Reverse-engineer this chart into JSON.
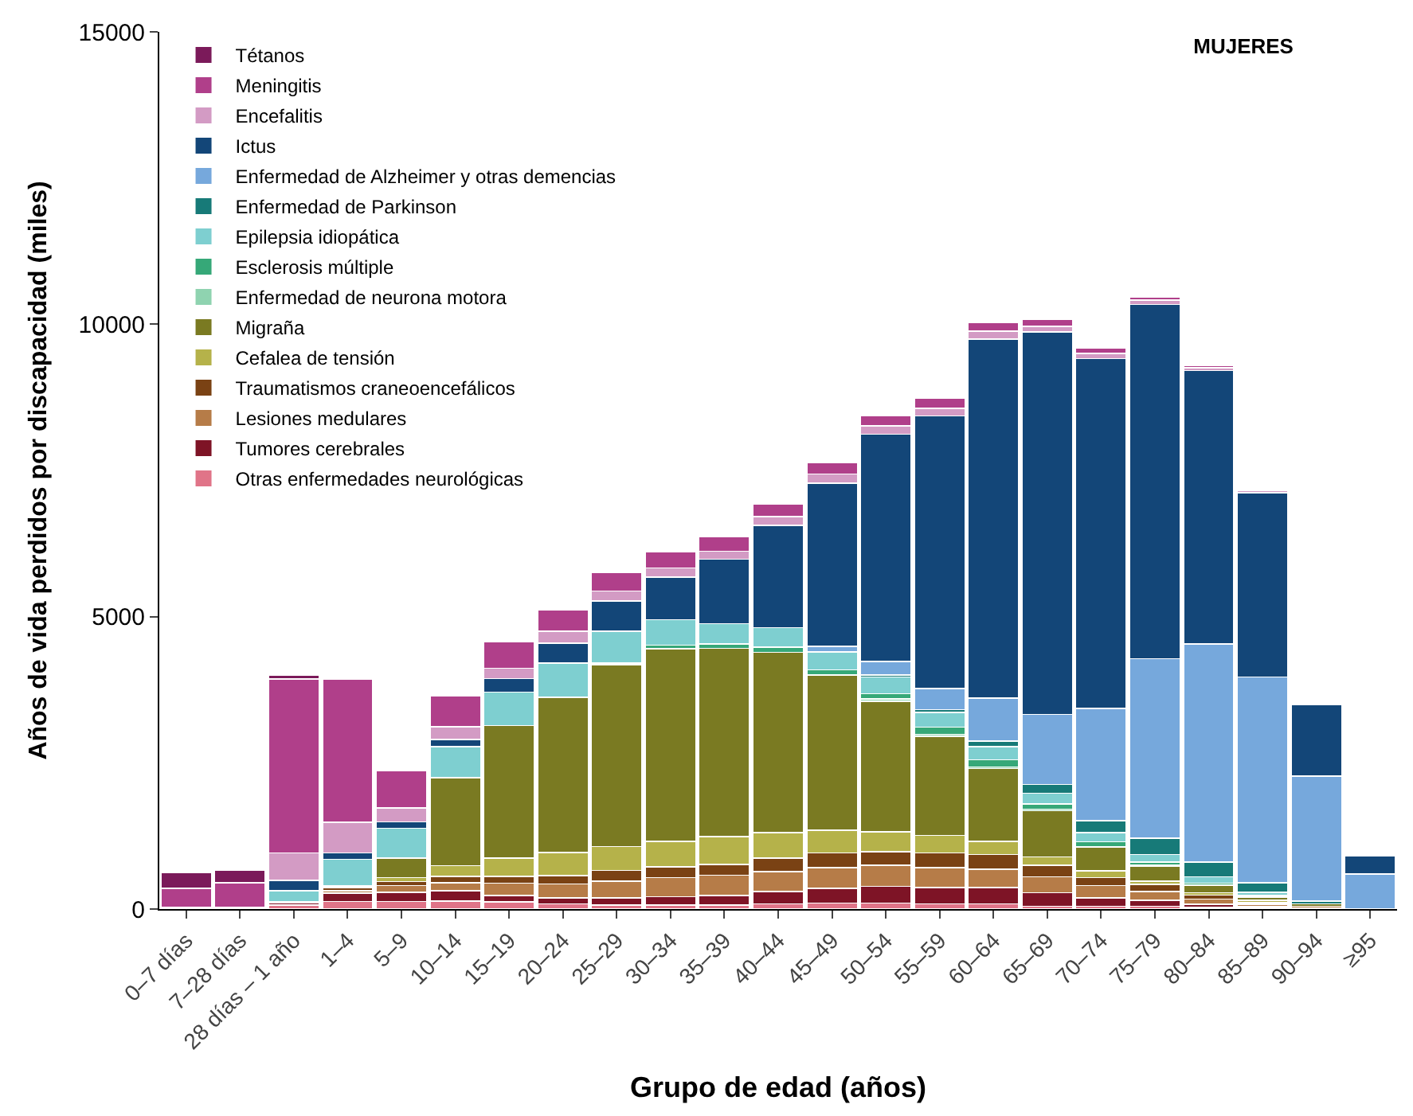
{
  "chart_data": {
    "type": "bar",
    "stacked": true,
    "title": "MUJERES",
    "xlabel": "Grupo de edad (años)",
    "ylabel": "Años de vida perdidos por discapacidad (miles)",
    "categories": [
      "0–7 días",
      "7–28 días",
      "28 días – 1 año",
      "1–4",
      "5–9",
      "10–14",
      "15–19",
      "20–24",
      "25–29",
      "30–34",
      "35–39",
      "40–44",
      "45–49",
      "50–54",
      "55–59",
      "60–64",
      "65–69",
      "70–74",
      "75–79",
      "80–84",
      "85–89",
      "90–94",
      "≥95"
    ],
    "ylim": [
      0,
      15000
    ],
    "yticks": [
      0,
      5000,
      10000,
      15000
    ],
    "legend": "top left",
    "series": [
      {
        "name": "Otras enfermedades neurológicas",
        "color": "#e07488",
        "values": [
          30,
          30,
          70,
          130,
          130,
          140,
          120,
          90,
          70,
          70,
          70,
          90,
          100,
          100,
          90,
          90,
          50,
          50,
          50,
          30,
          20,
          20,
          0
        ]
      },
      {
        "name": "Tumores cerebrales",
        "color": "#7e1426",
        "values": [
          0,
          0,
          30,
          140,
          160,
          170,
          110,
          100,
          120,
          140,
          160,
          210,
          250,
          290,
          280,
          280,
          230,
          140,
          100,
          50,
          20,
          0,
          0
        ]
      },
      {
        "name": "Lesiones medulares",
        "color": "#b67c48",
        "values": [
          0,
          0,
          20,
          40,
          110,
          140,
          210,
          240,
          290,
          330,
          350,
          340,
          360,
          360,
          340,
          310,
          270,
          210,
          150,
          90,
          40,
          30,
          0
        ]
      },
      {
        "name": "Traumatismos craneoencefálicos",
        "color": "#7a4214",
        "values": [
          0,
          0,
          10,
          50,
          70,
          110,
          120,
          140,
          180,
          180,
          180,
          230,
          250,
          230,
          250,
          250,
          200,
          140,
          120,
          70,
          30,
          0,
          0
        ]
      },
      {
        "name": "Cefalea de tensión",
        "color": "#b5b24a",
        "values": [
          0,
          0,
          0,
          20,
          70,
          180,
          310,
          400,
          410,
          440,
          480,
          440,
          390,
          340,
          300,
          230,
          140,
          110,
          60,
          40,
          40,
          0,
          0
        ]
      },
      {
        "name": "Migraña",
        "color": "#7a7a22",
        "values": [
          0,
          0,
          0,
          20,
          330,
          1510,
          2270,
          2650,
          3110,
          3290,
          3220,
          3080,
          2650,
          2230,
          1690,
          1240,
          790,
          410,
          250,
          120,
          50,
          40,
          0
        ]
      },
      {
        "name": "Enfermedad de neurona motora",
        "color": "#8fd3b0",
        "values": [
          0,
          0,
          0,
          0,
          0,
          0,
          0,
          0,
          0,
          0,
          0,
          0,
          0,
          40,
          40,
          30,
          30,
          0,
          20,
          10,
          10,
          0,
          0
        ]
      },
      {
        "name": "Esclerosis múltiple",
        "color": "#36a878",
        "values": [
          0,
          0,
          0,
          0,
          0,
          0,
          0,
          0,
          30,
          60,
          70,
          90,
          90,
          90,
          120,
          120,
          90,
          90,
          50,
          30,
          20,
          0,
          0
        ]
      },
      {
        "name": "Epilepsia idiopática",
        "color": "#7ecfd0",
        "values": [
          0,
          0,
          180,
          450,
          510,
          530,
          570,
          590,
          540,
          440,
          350,
          330,
          310,
          290,
          250,
          230,
          180,
          160,
          130,
          110,
          60,
          0,
          0
        ]
      },
      {
        "name": "Enfermedad de Parkinson",
        "color": "#177a78",
        "values": [
          0,
          0,
          0,
          0,
          0,
          0,
          0,
          0,
          0,
          0,
          0,
          0,
          0,
          30,
          50,
          90,
          150,
          200,
          280,
          250,
          160,
          50,
          0
        ]
      },
      {
        "name": "Enfermedad de Alzheimer y otras demencias",
        "color": "#76a8dc",
        "values": [
          0,
          0,
          0,
          0,
          0,
          0,
          0,
          0,
          0,
          0,
          0,
          0,
          90,
          230,
          360,
          740,
          1200,
          1920,
          3070,
          3730,
          3520,
          2130,
          600
        ]
      },
      {
        "name": "Ictus",
        "color": "#134678",
        "values": [
          0,
          0,
          180,
          110,
          110,
          120,
          230,
          340,
          520,
          730,
          1100,
          1750,
          2790,
          3890,
          4660,
          6140,
          6540,
          5980,
          6060,
          4680,
          3150,
          1220,
          310
        ]
      },
      {
        "name": "Encefalitis",
        "color": "#d39bc4",
        "values": [
          0,
          0,
          470,
          520,
          240,
          220,
          180,
          200,
          170,
          150,
          140,
          150,
          160,
          140,
          130,
          130,
          90,
          90,
          70,
          50,
          40,
          0,
          0
        ]
      },
      {
        "name": "Meningitis",
        "color": "#b03f8a",
        "values": [
          320,
          420,
          2970,
          2450,
          630,
          530,
          450,
          360,
          310,
          280,
          250,
          210,
          200,
          180,
          180,
          150,
          120,
          90,
          50,
          40,
          0,
          0,
          0
        ]
      },
      {
        "name": "Tétanos",
        "color": "#7b1a5a",
        "values": [
          280,
          220,
          70,
          30,
          0,
          0,
          0,
          0,
          0,
          0,
          0,
          0,
          0,
          0,
          0,
          0,
          0,
          0,
          0,
          0,
          0,
          0,
          0
        ]
      }
    ]
  }
}
